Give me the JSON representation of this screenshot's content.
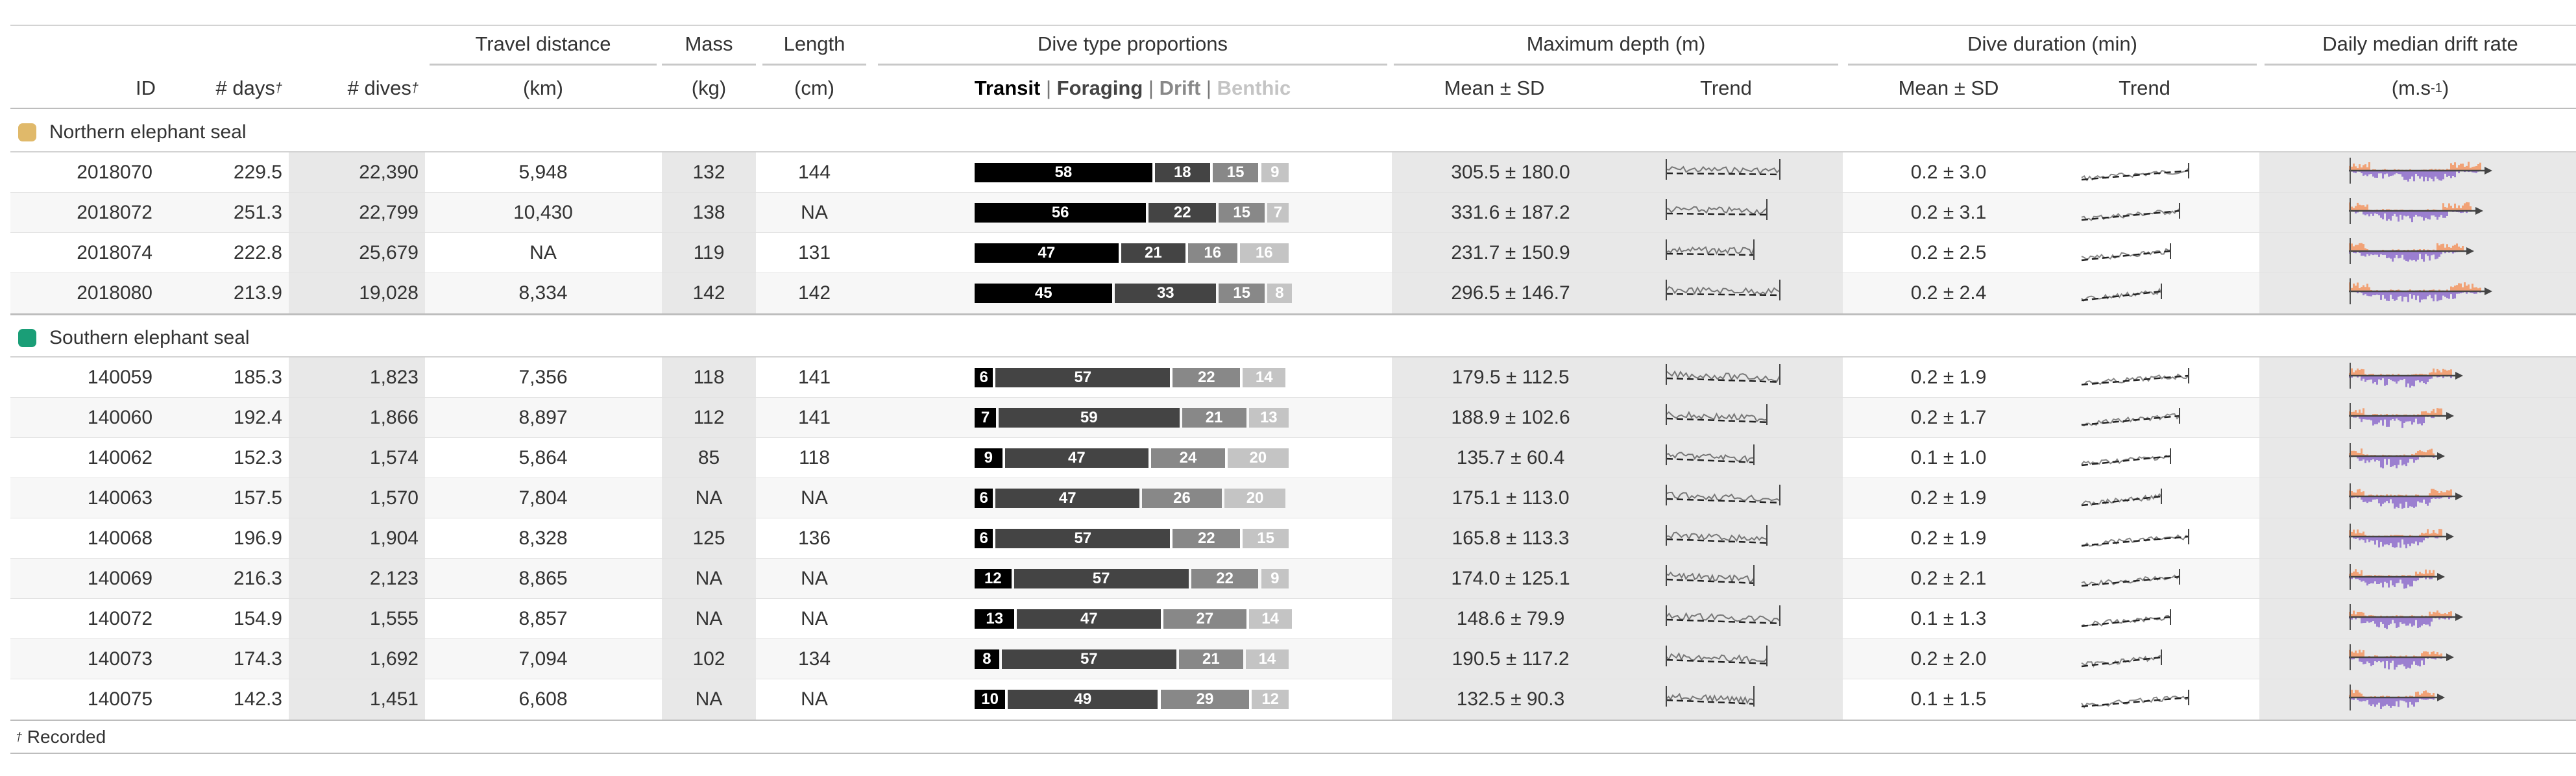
{
  "header": {
    "spanners": {
      "travel": "Travel distance",
      "mass": "Mass",
      "length": "Length",
      "dive_type": "Dive type proportions",
      "max_depth": "Maximum depth (m)",
      "dive_duration": "Dive duration (min)",
      "drift": "Daily median drift rate"
    },
    "columns": {
      "id": "ID",
      "days": "# days",
      "dives": "# dives",
      "dagger": "†",
      "travel_unit": "(km)",
      "mass_unit": "(kg)",
      "length_unit": "(cm)",
      "transit": "Transit",
      "foraging": "Foraging",
      "drift": "Drift",
      "benthic": "Benthic",
      "sep": "|",
      "depth_mean_sd": "Mean  ±  SD",
      "depth_trend": "Trend",
      "dur_mean_sd": "Mean  ±  SD",
      "dur_trend": "Trend",
      "drift_unit_pre": "(m.s",
      "drift_unit_exp": "-1",
      "drift_unit_post": ")"
    }
  },
  "colors": {
    "northern": "#e0b96a",
    "southern": "#1a9e77",
    "transit": "#000000",
    "foraging": "#444444",
    "drift": "#888888",
    "benthic": "#c4c4c4",
    "drift_neg": "#9b7fd0",
    "drift_pos": "#f1a276"
  },
  "groups": [
    {
      "label": "Northern elephant seal",
      "color_key": "northern",
      "rows": [
        {
          "id": "2018070",
          "days": "229.5",
          "dives": "22,390",
          "travel": "5,948",
          "mass": "132",
          "length": "144",
          "p": [
            58,
            18,
            15,
            9
          ],
          "depth_mean": "305.5",
          "depth_sd": "180.0",
          "dur_mean": "0.2",
          "dur_sd": "3.0"
        },
        {
          "id": "2018072",
          "days": "251.3",
          "dives": "22,799",
          "travel": "10,430",
          "mass": "138",
          "length": "NA",
          "p": [
            56,
            22,
            15,
            7
          ],
          "depth_mean": "331.6",
          "depth_sd": "187.2",
          "dur_mean": "0.2",
          "dur_sd": "3.1"
        },
        {
          "id": "2018074",
          "days": "222.8",
          "dives": "25,679",
          "travel": "NA",
          "mass": "119",
          "length": "131",
          "p": [
            47,
            21,
            16,
            16
          ],
          "depth_mean": "231.7",
          "depth_sd": "150.9",
          "dur_mean": "0.2",
          "dur_sd": "2.5"
        },
        {
          "id": "2018080",
          "days": "213.9",
          "dives": "19,028",
          "travel": "8,334",
          "mass": "142",
          "length": "142",
          "p": [
            45,
            33,
            15,
            8
          ],
          "depth_mean": "296.5",
          "depth_sd": "146.7",
          "dur_mean": "0.2",
          "dur_sd": "2.4"
        }
      ]
    },
    {
      "label": "Southern elephant seal",
      "color_key": "southern",
      "rows": [
        {
          "id": "140059",
          "days": "185.3",
          "dives": "1,823",
          "travel": "7,356",
          "mass": "118",
          "length": "141",
          "p": [
            6,
            57,
            22,
            14
          ],
          "depth_mean": "179.5",
          "depth_sd": "112.5",
          "dur_mean": "0.2",
          "dur_sd": "1.9"
        },
        {
          "id": "140060",
          "days": "192.4",
          "dives": "1,866",
          "travel": "8,897",
          "mass": "112",
          "length": "141",
          "p": [
            7,
            59,
            21,
            13
          ],
          "depth_mean": "188.9",
          "depth_sd": "102.6",
          "dur_mean": "0.2",
          "dur_sd": "1.7"
        },
        {
          "id": "140062",
          "days": "152.3",
          "dives": "1,574",
          "travel": "5,864",
          "mass": "85",
          "length": "118",
          "p": [
            9,
            47,
            24,
            20
          ],
          "depth_mean": "135.7",
          "depth_sd": "60.4",
          "dur_mean": "0.1",
          "dur_sd": "1.0"
        },
        {
          "id": "140063",
          "days": "157.5",
          "dives": "1,570",
          "travel": "7,804",
          "mass": "NA",
          "length": "NA",
          "p": [
            6,
            47,
            26,
            20
          ],
          "depth_mean": "175.1",
          "depth_sd": "113.0",
          "dur_mean": "0.2",
          "dur_sd": "1.9"
        },
        {
          "id": "140068",
          "days": "196.9",
          "dives": "1,904",
          "travel": "8,328",
          "mass": "125",
          "length": "136",
          "p": [
            6,
            57,
            22,
            15
          ],
          "depth_mean": "165.8",
          "depth_sd": "113.3",
          "dur_mean": "0.2",
          "dur_sd": "1.9"
        },
        {
          "id": "140069",
          "days": "216.3",
          "dives": "2,123",
          "travel": "8,865",
          "mass": "NA",
          "length": "NA",
          "p": [
            12,
            57,
            22,
            9
          ],
          "depth_mean": "174.0",
          "depth_sd": "125.1",
          "dur_mean": "0.2",
          "dur_sd": "2.1"
        },
        {
          "id": "140072",
          "days": "154.9",
          "dives": "1,555",
          "travel": "8,857",
          "mass": "NA",
          "length": "NA",
          "p": [
            13,
            47,
            27,
            14
          ],
          "depth_mean": "148.6",
          "depth_sd": "79.9",
          "dur_mean": "0.1",
          "dur_sd": "1.3"
        },
        {
          "id": "140073",
          "days": "174.3",
          "dives": "1,692",
          "travel": "7,094",
          "mass": "102",
          "length": "134",
          "p": [
            8,
            57,
            21,
            14
          ],
          "depth_mean": "190.5",
          "depth_sd": "117.2",
          "dur_mean": "0.2",
          "dur_sd": "2.0"
        },
        {
          "id": "140075",
          "days": "142.3",
          "dives": "1,451",
          "travel": "6,608",
          "mass": "NA",
          "length": "NA",
          "p": [
            10,
            49,
            29,
            12
          ],
          "depth_mean": "132.5",
          "depth_sd": "90.3",
          "dur_mean": "0.1",
          "dur_sd": "1.5"
        }
      ]
    }
  ],
  "footnote": {
    "mark": "†",
    "text": " Recorded"
  }
}
